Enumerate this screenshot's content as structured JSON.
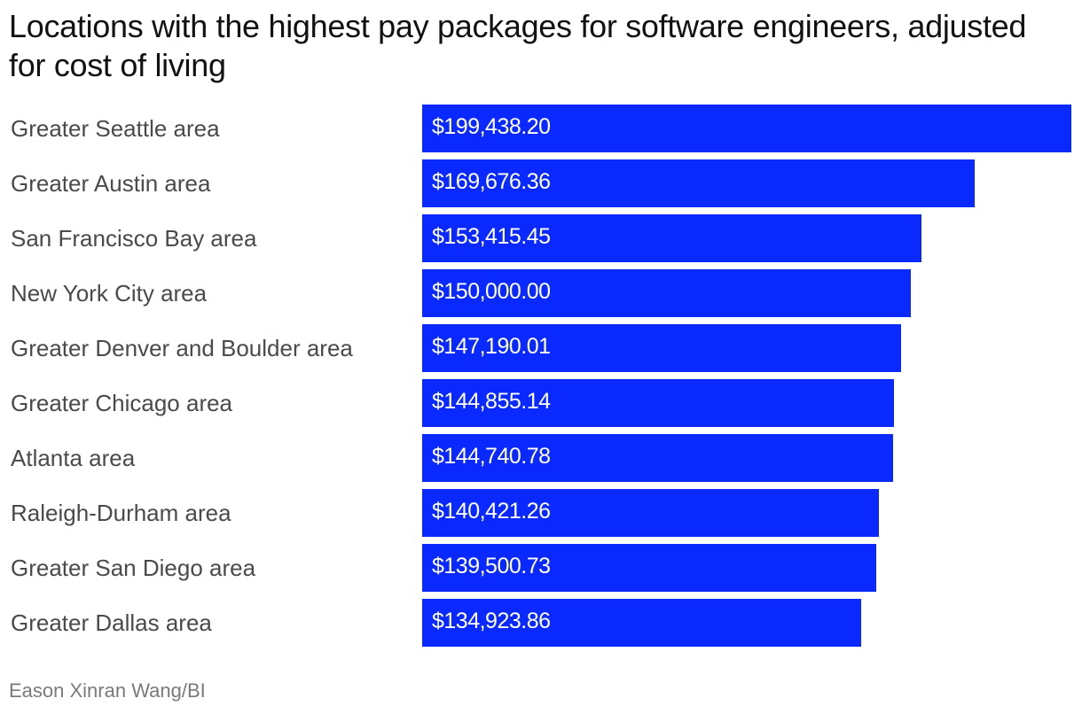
{
  "page": {
    "title": "Locations with the highest pay packages for software engineers, adjusted for cost of living",
    "source": "Eason Xinran Wang/BI"
  },
  "colors": {
    "bar": "#0a29ff",
    "bar_label": "#ffffff",
    "category_label": "#4a4a4a"
  },
  "chart_data": {
    "type": "bar",
    "orientation": "horizontal",
    "title": "Locations with the highest pay packages for software engineers, adjusted for cost of living",
    "xlabel": "",
    "ylabel": "",
    "xlim": [
      0,
      199438.2
    ],
    "grid": false,
    "legend": "none",
    "categories": [
      "Greater Seattle area",
      "Greater Austin area",
      "San Francisco Bay area",
      "New York City area",
      "Greater Denver and Boulder area",
      "Greater Chicago area",
      "Atlanta area",
      "Raleigh-Durham area",
      "Greater San Diego area",
      "Greater Dallas area"
    ],
    "values": [
      199438.2,
      169676.36,
      153415.45,
      150000.0,
      147190.01,
      144855.14,
      144740.78,
      140421.26,
      139500.73,
      134923.86
    ],
    "value_labels": [
      "$199,438.20",
      "$169,676.36",
      "$153,415.45",
      "$150,000.00",
      "$147,190.01",
      "$144,855.14",
      "$144,740.78",
      "$140,421.26",
      "$139,500.73",
      "$134,923.86"
    ]
  }
}
